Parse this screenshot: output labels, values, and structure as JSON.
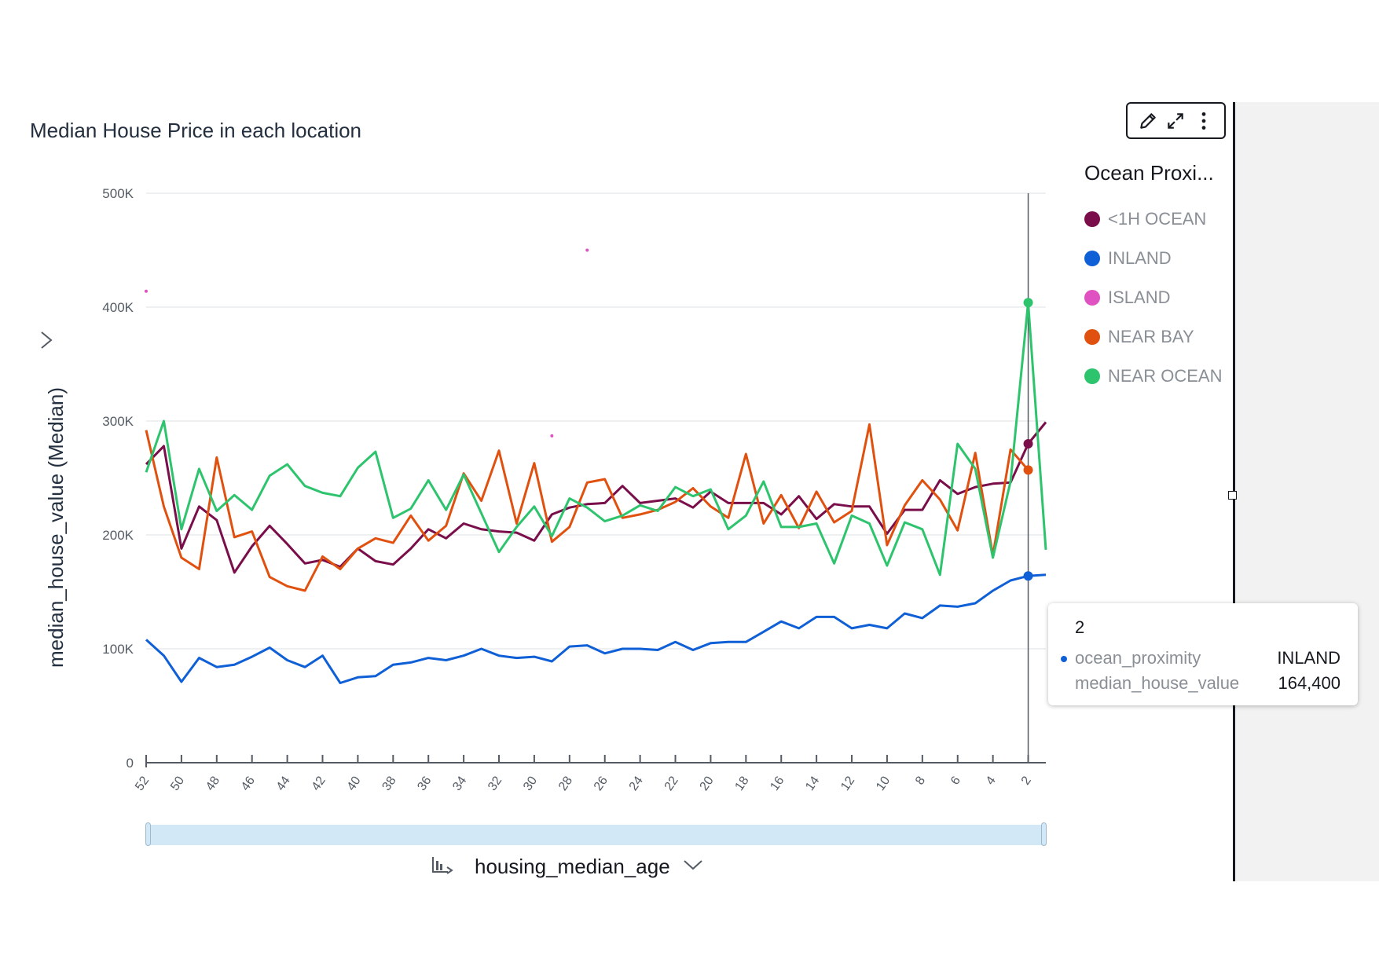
{
  "chart_title": "Median House Price in each location",
  "toolbar": {
    "edit_icon": "pencil-icon",
    "expand_icon": "expand-icon",
    "menu_icon": "more-vertical-icon"
  },
  "legend": {
    "title": "Ocean Proxi..."
  },
  "y_axis": {
    "label": "median_house_value (Median)"
  },
  "x_axis": {
    "label": "housing_median_age",
    "icon": "field-type-icon"
  },
  "tooltip": {
    "header": "2",
    "rows": [
      {
        "key": "ocean_proximity",
        "value": "INLAND"
      },
      {
        "key": "median_house_value",
        "value": "164,400"
      }
    ]
  },
  "chart_data": {
    "type": "line",
    "title": "Median House Price in each location",
    "xlabel": "housing_median_age",
    "ylabel": "median_house_value (Median)",
    "x": [
      52,
      51,
      50,
      49,
      48,
      47,
      46,
      45,
      44,
      43,
      42,
      41,
      40,
      39,
      38,
      37,
      36,
      35,
      34,
      33,
      32,
      31,
      30,
      29,
      28,
      27,
      26,
      25,
      24,
      23,
      22,
      21,
      20,
      19,
      18,
      17,
      16,
      15,
      14,
      13,
      12,
      11,
      10,
      9,
      8,
      7,
      6,
      5,
      4,
      3,
      2,
      1
    ],
    "x_tick_labels": [
      "52",
      "50",
      "48",
      "46",
      "44",
      "42",
      "40",
      "38",
      "36",
      "34",
      "32",
      "30",
      "28",
      "26",
      "24",
      "22",
      "20",
      "18",
      "16",
      "14",
      "12",
      "10",
      "8",
      "6",
      "4",
      "2"
    ],
    "y_tick_labels": [
      "0",
      "100K",
      "200K",
      "300K",
      "400K",
      "500K"
    ],
    "ylim": [
      0,
      500000
    ],
    "grid": true,
    "legend_position": "right",
    "series": [
      {
        "name": "<1H OCEAN",
        "color": "#7a0e4a",
        "values": [
          262000,
          278000,
          188000,
          225000,
          213000,
          167000,
          190000,
          208000,
          192000,
          175000,
          178000,
          172000,
          188000,
          177000,
          174000,
          188000,
          205000,
          197000,
          210000,
          205000,
          203000,
          202000,
          195000,
          218000,
          224000,
          227000,
          228000,
          243000,
          228000,
          230000,
          232000,
          224000,
          238000,
          228000,
          228000,
          228000,
          218000,
          234000,
          214000,
          227000,
          225000,
          225000,
          201000,
          222000,
          222000,
          248000,
          236000,
          242000,
          245000,
          246000,
          280000,
          299000
        ]
      },
      {
        "name": "INLAND",
        "color": "#0f5fd6",
        "values": [
          108000,
          94000,
          71000,
          92000,
          84000,
          86000,
          93000,
          101000,
          90000,
          84000,
          94000,
          70000,
          75000,
          76000,
          86000,
          88000,
          92000,
          90000,
          94000,
          100000,
          94000,
          92000,
          93000,
          89000,
          102000,
          103000,
          96000,
          100000,
          100000,
          99000,
          106000,
          99000,
          105000,
          106000,
          106000,
          115000,
          124000,
          118000,
          128000,
          128000,
          118000,
          121000,
          118000,
          131000,
          127000,
          138000,
          137000,
          140000,
          151000,
          160000,
          164000,
          165000
        ]
      },
      {
        "name": "ISLAND",
        "color": "#e052c1",
        "points": [
          [
            52,
            414000
          ],
          [
            27,
            450000
          ],
          [
            29,
            287000
          ]
        ]
      },
      {
        "name": "NEAR BAY",
        "color": "#e0510f",
        "values": [
          292000,
          225000,
          180000,
          170000,
          268000,
          198000,
          203000,
          163000,
          155000,
          151000,
          181000,
          170000,
          188000,
          197000,
          193000,
          217000,
          195000,
          208000,
          254000,
          230000,
          274000,
          210000,
          263000,
          194000,
          207000,
          246000,
          249000,
          215000,
          218000,
          222000,
          229000,
          241000,
          225000,
          215000,
          271000,
          210000,
          235000,
          206000,
          238000,
          211000,
          221000,
          297000,
          191000,
          226000,
          248000,
          231000,
          204000,
          272000,
          182000,
          275000,
          257000,
          null
        ]
      },
      {
        "name": "NEAR OCEAN",
        "color": "#2ec46e",
        "values": [
          255000,
          300000,
          205000,
          258000,
          221000,
          235000,
          222000,
          252000,
          262000,
          243000,
          237000,
          234000,
          259000,
          273000,
          215000,
          223000,
          248000,
          222000,
          253000,
          219000,
          185000,
          207000,
          225000,
          199000,
          232000,
          224000,
          212000,
          217000,
          226000,
          221000,
          242000,
          234000,
          240000,
          205000,
          217000,
          247000,
          207000,
          207000,
          210000,
          175000,
          217000,
          210000,
          173000,
          211000,
          205000,
          165000,
          280000,
          258000,
          180000,
          247000,
          404000,
          187000
        ]
      }
    ]
  }
}
